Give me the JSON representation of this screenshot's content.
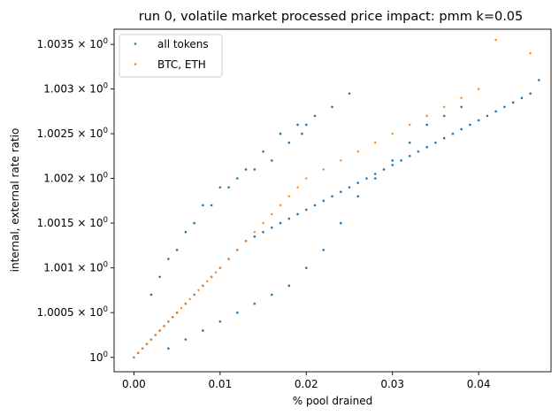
{
  "chart_data": {
    "type": "scatter",
    "title": "run 0, volatile market processed price impact: pmm k=0.05",
    "xlabel": "% pool drained",
    "ylabel": "internal, external rate ratio",
    "xlim": [
      -0.0023,
      0.0484
    ],
    "ylim": [
      0.99984,
      1.00367
    ],
    "yscale": "log",
    "x_ticks": [
      {
        "value": 0.0,
        "label": "0.00"
      },
      {
        "value": 0.01,
        "label": "0.01"
      },
      {
        "value": 0.02,
        "label": "0.02"
      },
      {
        "value": 0.03,
        "label": "0.03"
      },
      {
        "value": 0.04,
        "label": "0.04"
      }
    ],
    "y_ticks": [
      {
        "value": 1.0,
        "base": "10",
        "mantissa": "",
        "exponent": "0"
      },
      {
        "value": 1.0005,
        "base": "10",
        "mantissa": "1.0005",
        "exponent": "0"
      },
      {
        "value": 1.001,
        "base": "10",
        "mantissa": "1.001",
        "exponent": "0"
      },
      {
        "value": 1.0015,
        "base": "10",
        "mantissa": "1.0015",
        "exponent": "0"
      },
      {
        "value": 1.002,
        "base": "10",
        "mantissa": "1.002",
        "exponent": "0"
      },
      {
        "value": 1.0025,
        "base": "10",
        "mantissa": "1.0025",
        "exponent": "0"
      },
      {
        "value": 1.003,
        "base": "10",
        "mantissa": "1.003",
        "exponent": "0"
      },
      {
        "value": 1.0035,
        "base": "10",
        "mantissa": "1.0035",
        "exponent": "0"
      }
    ],
    "legend_position": "top-left",
    "grid": false,
    "series": [
      {
        "name": "all tokens",
        "color": "#1f77b4",
        "x": [
          0.0,
          0.0005,
          0.001,
          0.0015,
          0.002,
          0.0025,
          0.003,
          0.0035,
          0.004,
          0.0045,
          0.005,
          0.006,
          0.007,
          0.008,
          0.009,
          0.01,
          0.011,
          0.012,
          0.013,
          0.014,
          0.015,
          0.016,
          0.017,
          0.018,
          0.019,
          0.02,
          0.021,
          0.022,
          0.023,
          0.024,
          0.025,
          0.026,
          0.027,
          0.028,
          0.029,
          0.03,
          0.031,
          0.032,
          0.033,
          0.034,
          0.035,
          0.036,
          0.037,
          0.038,
          0.039,
          0.04,
          0.041,
          0.042,
          0.043,
          0.044,
          0.045,
          0.046,
          0.047,
          0.003,
          0.005,
          0.007,
          0.009,
          0.011,
          0.013,
          0.015,
          0.017,
          0.019,
          0.021,
          0.023,
          0.025,
          0.004,
          0.006,
          0.008,
          0.01,
          0.012,
          0.014,
          0.016,
          0.018,
          0.02,
          0.022,
          0.024,
          0.026,
          0.028,
          0.03,
          0.032,
          0.034,
          0.036,
          0.038,
          0.002,
          0.004,
          0.006,
          0.008,
          0.01,
          0.012,
          0.014,
          0.016,
          0.018,
          0.0195,
          0.02
        ],
        "y": [
          1.0,
          1.00005,
          1.0001,
          1.00015,
          1.0002,
          1.00025,
          1.0003,
          1.00035,
          1.0004,
          1.00045,
          1.0005,
          1.0006,
          1.0007,
          1.0008,
          1.0009,
          1.001,
          1.0011,
          1.0012,
          1.0013,
          1.00135,
          1.0014,
          1.00145,
          1.0015,
          1.00155,
          1.0016,
          1.00165,
          1.0017,
          1.00175,
          1.0018,
          1.00185,
          1.0019,
          1.00195,
          1.002,
          1.00205,
          1.0021,
          1.00215,
          1.0022,
          1.00225,
          1.0023,
          1.00235,
          1.0024,
          1.00245,
          1.0025,
          1.00255,
          1.0026,
          1.00265,
          1.0027,
          1.00275,
          1.0028,
          1.00285,
          1.0029,
          1.00295,
          1.0031,
          1.0009,
          1.0012,
          1.0015,
          1.0017,
          1.0019,
          1.0021,
          1.0023,
          1.0025,
          1.0026,
          1.0027,
          1.0028,
          1.00295,
          1.0001,
          1.0002,
          1.0003,
          1.0004,
          1.0005,
          1.0006,
          1.0007,
          1.0008,
          1.001,
          1.0012,
          1.0015,
          1.0018,
          1.002,
          1.0022,
          1.0024,
          1.0026,
          1.0027,
          1.0028,
          1.0007,
          1.0011,
          1.0014,
          1.0017,
          1.0019,
          1.002,
          1.0021,
          1.0022,
          1.0024,
          1.0025,
          1.0026
        ]
      },
      {
        "name": "BTC, ETH",
        "color": "#ff7f0e",
        "x": [
          0.0,
          0.0005,
          0.001,
          0.0015,
          0.002,
          0.0025,
          0.003,
          0.0035,
          0.004,
          0.0045,
          0.005,
          0.0055,
          0.006,
          0.0065,
          0.007,
          0.0075,
          0.008,
          0.0085,
          0.009,
          0.0095,
          0.01,
          0.011,
          0.012,
          0.013,
          0.014,
          0.015,
          0.016,
          0.017,
          0.018,
          0.019,
          0.02,
          0.022,
          0.024,
          0.026,
          0.028,
          0.03,
          0.032,
          0.034,
          0.036,
          0.038,
          0.04,
          0.042,
          0.046
        ],
        "y": [
          1.0,
          1.00005,
          1.0001,
          1.00015,
          1.0002,
          1.00025,
          1.0003,
          1.00035,
          1.0004,
          1.00045,
          1.0005,
          1.00055,
          1.0006,
          1.00065,
          1.0007,
          1.00075,
          1.0008,
          1.00085,
          1.0009,
          1.00095,
          1.001,
          1.0011,
          1.0012,
          1.0013,
          1.0014,
          1.0015,
          1.0016,
          1.0017,
          1.0018,
          1.0019,
          1.002,
          1.0021,
          1.0022,
          1.0023,
          1.0024,
          1.0025,
          1.0026,
          1.0027,
          1.0028,
          1.0029,
          1.003,
          1.00355,
          1.0034
        ]
      }
    ]
  }
}
